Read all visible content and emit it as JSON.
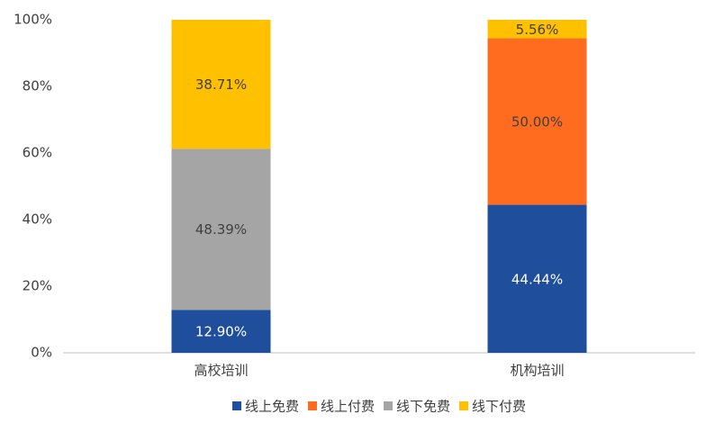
{
  "chart_data": {
    "type": "stacked_bar",
    "categories": [
      "高校培训",
      "机构培训"
    ],
    "series": [
      {
        "name": "线上免费",
        "color": "#1f4e9c",
        "values": [
          12.9,
          44.44
        ],
        "value_labels": [
          "12.90%",
          "44.44%"
        ]
      },
      {
        "name": "线上付费",
        "color": "#ff6b1f",
        "values": [
          0,
          50.0
        ],
        "value_labels": [
          null,
          "50.00%"
        ]
      },
      {
        "name": "线下免费",
        "color": "#a5a5a5",
        "values": [
          48.39,
          0
        ],
        "value_labels": [
          "48.39%",
          null
        ]
      },
      {
        "name": "线下付费",
        "color": "#ffc000",
        "values": [
          38.71,
          5.56
        ],
        "value_labels": [
          "38.71%",
          "5.56%"
        ]
      }
    ],
    "ylim": [
      0,
      100
    ],
    "yticks": [
      {
        "value": 0,
        "label": "0%"
      },
      {
        "value": 20,
        "label": "20%"
      },
      {
        "value": 40,
        "label": "40%"
      },
      {
        "value": 60,
        "label": "60%"
      },
      {
        "value": 80,
        "label": "80%"
      },
      {
        "value": 100,
        "label": "100%"
      }
    ],
    "legend": "bottom"
  }
}
